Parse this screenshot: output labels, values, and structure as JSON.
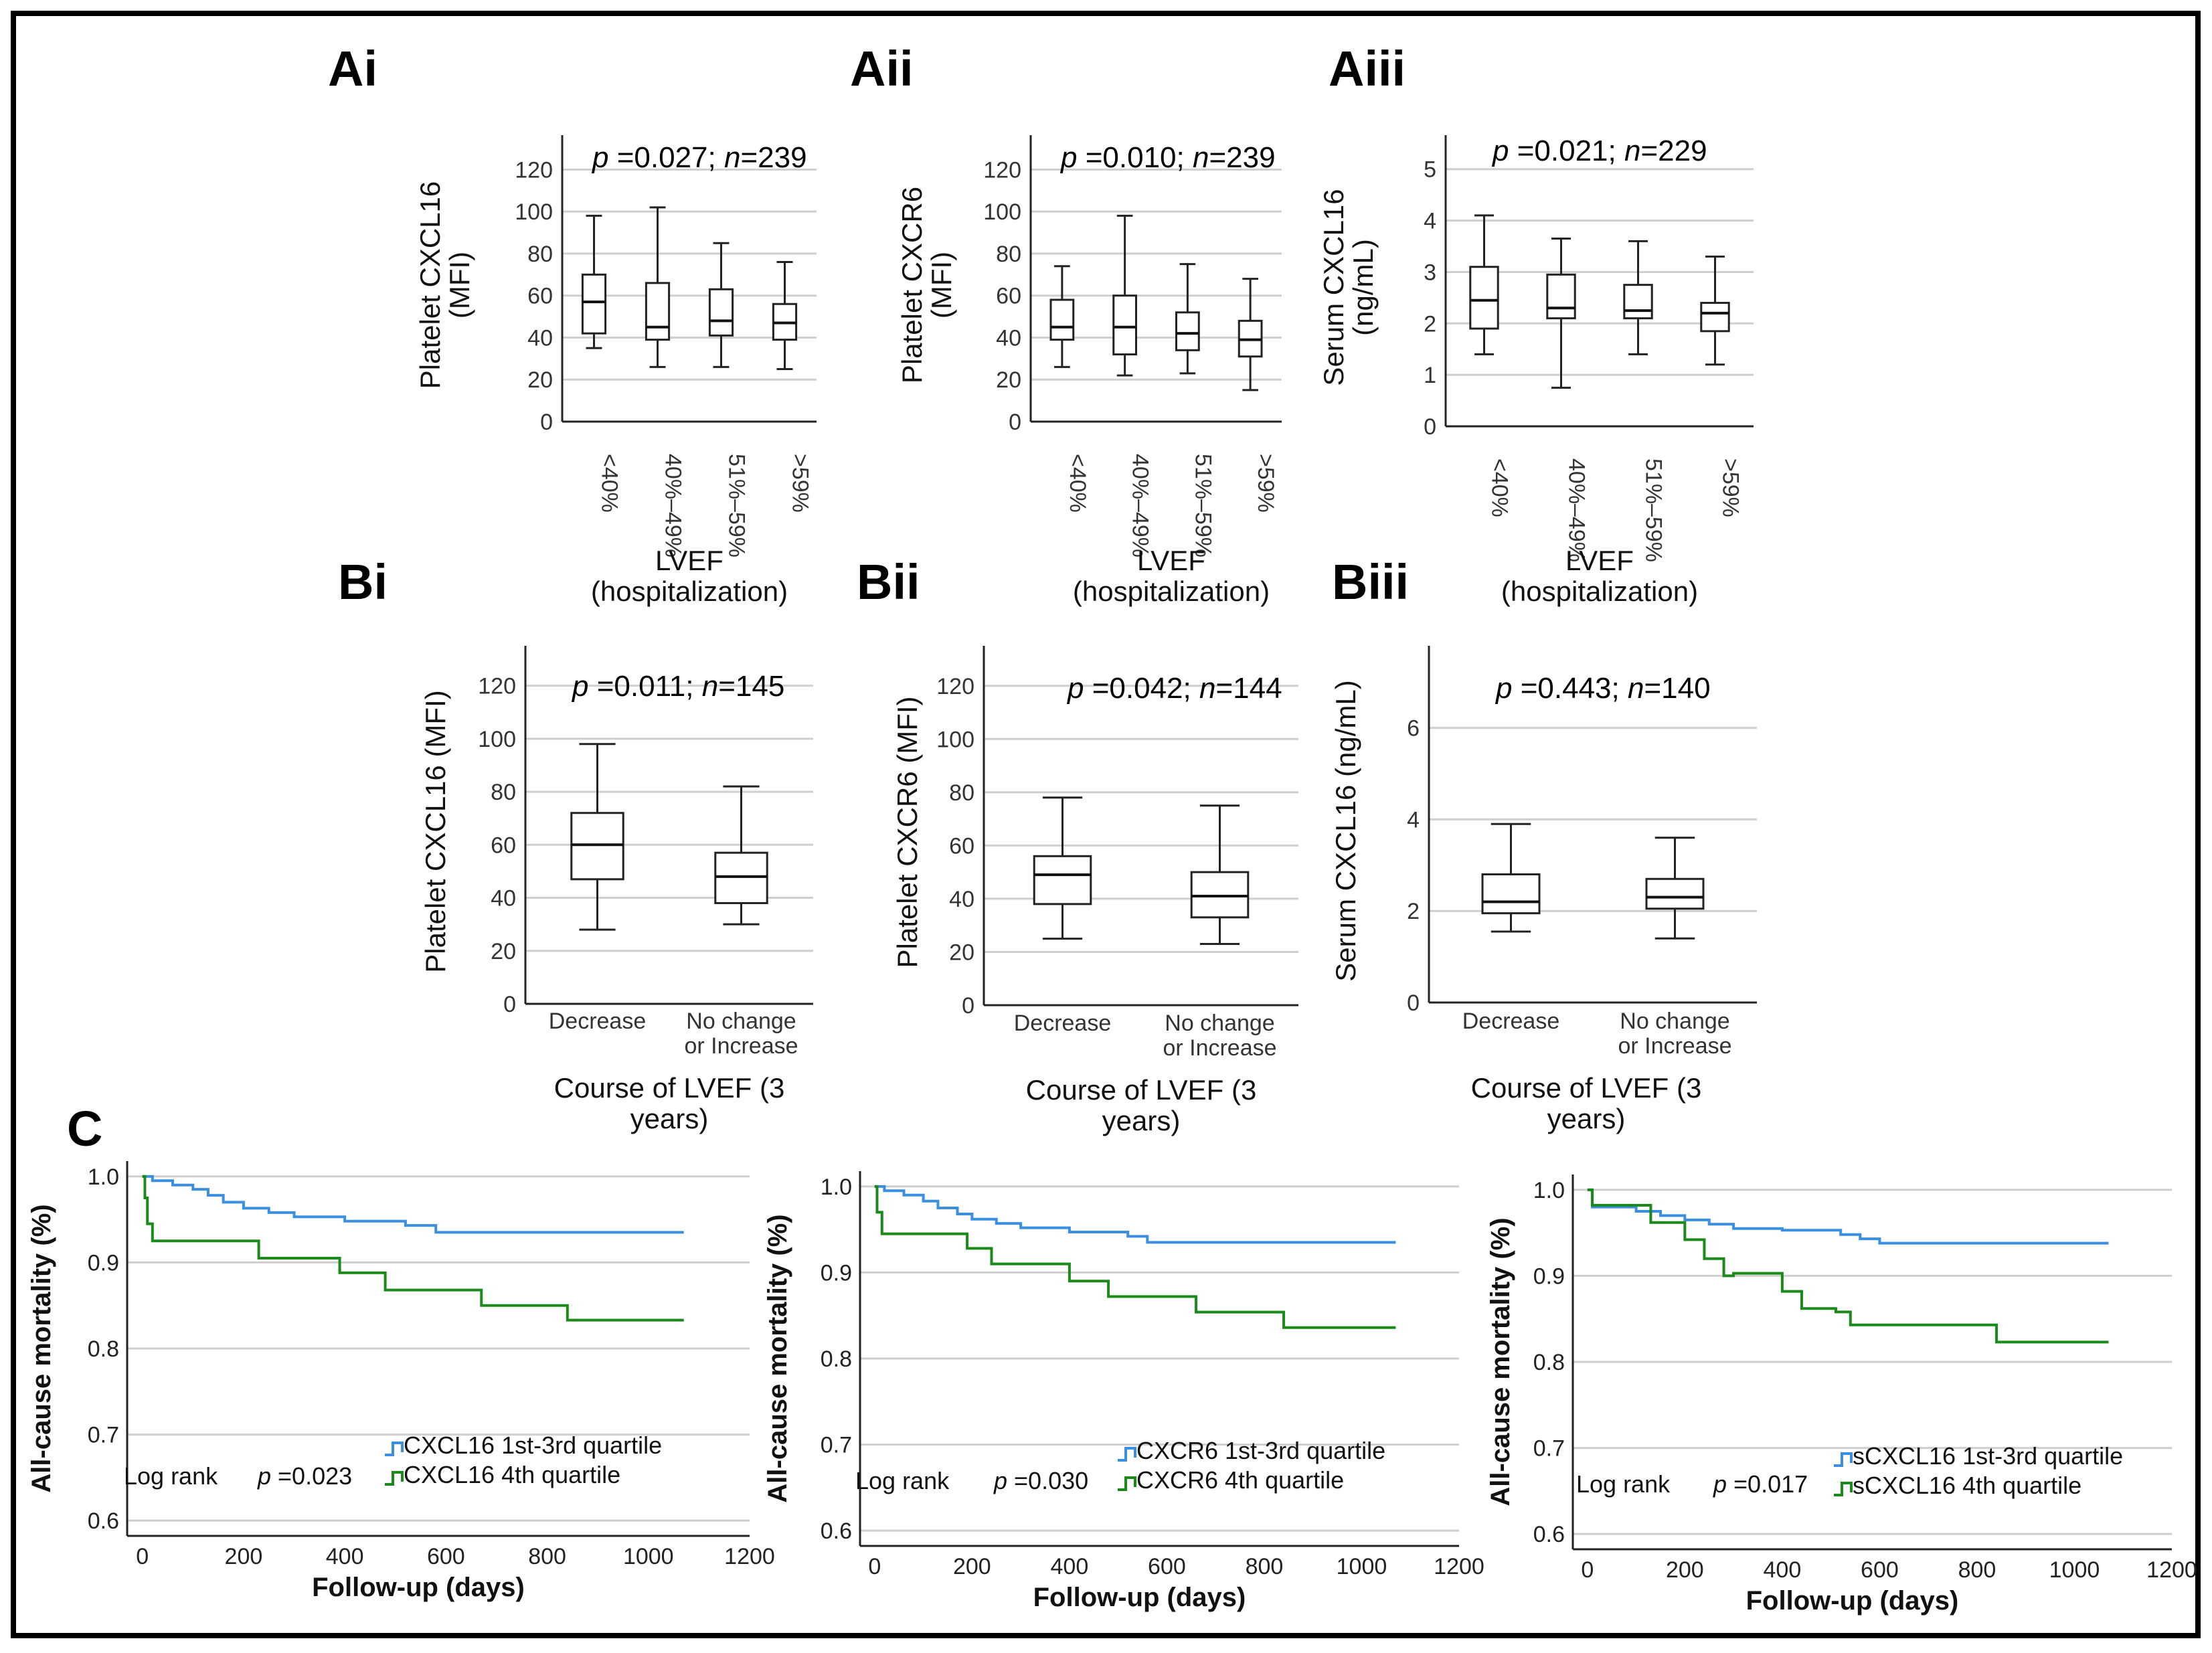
{
  "colors": {
    "blue": "#3a8fe0",
    "green": "#1a8a1a",
    "frame": "#000000",
    "grid": "#cfcfcf"
  },
  "panel_labels": {
    "Ai": "Ai",
    "Aii": "Aii",
    "Aiii": "Aiii",
    "Bi": "Bi",
    "Bii": "Bii",
    "Biii": "Biii",
    "C": "C"
  },
  "chart_data": [
    {
      "id": "Ai",
      "type": "box",
      "ylabel": "Platelet CXCL16\n(MFI)",
      "xlabel": "LVEF\n(hospitalization)",
      "stat": {
        "p_label": "p",
        "p_value": "=0.027;",
        "n_label": "n",
        "n_value": "=239"
      },
      "ylim": [
        0,
        130
      ],
      "yticks": [
        0,
        20,
        40,
        60,
        80,
        100,
        120
      ],
      "categories": [
        "<40%",
        "40%–49%",
        "51%–59%",
        ">59%"
      ],
      "boxes": [
        {
          "min": 35,
          "q1": 42,
          "median": 57,
          "q3": 70,
          "max": 98
        },
        {
          "min": 26,
          "q1": 39,
          "median": 45,
          "q3": 66,
          "max": 102
        },
        {
          "min": 26,
          "q1": 41,
          "median": 48,
          "q3": 63,
          "max": 85
        },
        {
          "min": 25,
          "q1": 39,
          "median": 47,
          "q3": 56,
          "max": 76
        }
      ]
    },
    {
      "id": "Aii",
      "type": "box",
      "ylabel": "Platelet CXCR6\n(MFI)",
      "xlabel": "LVEF\n(hospitalization)",
      "stat": {
        "p_label": "p",
        "p_value": "=0.010;",
        "n_label": "n",
        "n_value": "=239"
      },
      "ylim": [
        0,
        130
      ],
      "yticks": [
        0,
        20,
        40,
        60,
        80,
        100,
        120
      ],
      "categories": [
        "<40%",
        "40%–49%",
        "51%–59%",
        ">59%"
      ],
      "boxes": [
        {
          "min": 26,
          "q1": 39,
          "median": 45,
          "q3": 58,
          "max": 74
        },
        {
          "min": 22,
          "q1": 32,
          "median": 45,
          "q3": 60,
          "max": 98
        },
        {
          "min": 23,
          "q1": 34,
          "median": 42,
          "q3": 52,
          "max": 75
        },
        {
          "min": 15,
          "q1": 31,
          "median": 39,
          "q3": 48,
          "max": 68
        }
      ]
    },
    {
      "id": "Aiii",
      "type": "box",
      "ylabel": "Serum CXCL16\n(ng/mL)",
      "xlabel": "LVEF\n(hospitalization)",
      "stat": {
        "p_label": "p",
        "p_value": "=0.021;",
        "n_label": "n",
        "n_value": "=229"
      },
      "ylim": [
        0,
        5.4
      ],
      "yticks": [
        0,
        1,
        2,
        3,
        4,
        5
      ],
      "categories": [
        "<40%",
        "40%–49%",
        "51%–59%",
        ">59%"
      ],
      "boxes": [
        {
          "min": 1.4,
          "q1": 1.9,
          "median": 2.45,
          "q3": 3.1,
          "max": 4.1
        },
        {
          "min": 0.75,
          "q1": 2.1,
          "median": 2.3,
          "q3": 2.95,
          "max": 3.65
        },
        {
          "min": 1.4,
          "q1": 2.1,
          "median": 2.25,
          "q3": 2.75,
          "max": 3.6
        },
        {
          "min": 1.2,
          "q1": 1.85,
          "median": 2.2,
          "q3": 2.4,
          "max": 3.3
        }
      ]
    },
    {
      "id": "Bi",
      "type": "box",
      "ylabel": "Platelet CXCL16 (MFI)",
      "xlabel": "Course of LVEF (3\nyears)",
      "stat": {
        "p_label": "p",
        "p_value": "=0.011;",
        "n_label": "n",
        "n_value": "=145"
      },
      "ylim": [
        0,
        130
      ],
      "yticks": [
        0,
        20,
        40,
        60,
        80,
        100,
        120
      ],
      "categories": [
        "Decrease",
        "No change\nor Increase"
      ],
      "boxes": [
        {
          "min": 28,
          "q1": 47,
          "median": 60,
          "q3": 72,
          "max": 98
        },
        {
          "min": 30,
          "q1": 38,
          "median": 48,
          "q3": 57,
          "max": 82
        }
      ]
    },
    {
      "id": "Bii",
      "type": "box",
      "ylabel": "Platelet CXCR6 (MFI)",
      "xlabel": "Course of LVEF (3\nyears)",
      "stat": {
        "p_label": "p",
        "p_value": "=0.042;",
        "n_label": "n",
        "n_value": "=144"
      },
      "ylim": [
        0,
        130
      ],
      "yticks": [
        0,
        20,
        40,
        60,
        80,
        100,
        120
      ],
      "categories": [
        "Decrease",
        "No change\nor Increase"
      ],
      "boxes": [
        {
          "min": 25,
          "q1": 38,
          "median": 49,
          "q3": 56,
          "max": 78
        },
        {
          "min": 23,
          "q1": 33,
          "median": 41,
          "q3": 50,
          "max": 75
        }
      ]
    },
    {
      "id": "Biii",
      "type": "box",
      "ylabel": "Serum CXCL16 (ng/mL)",
      "xlabel": "Course of LVEF (3\nyears)",
      "stat": {
        "p_label": "p",
        "p_value": "=0.443;",
        "n_label": "n",
        "n_value": "=140"
      },
      "ylim": [
        0,
        7.5
      ],
      "yticks": [
        0,
        2,
        4,
        6
      ],
      "categories": [
        "Decrease",
        "No change\nor Increase"
      ],
      "boxes": [
        {
          "min": 1.55,
          "q1": 1.95,
          "median": 2.2,
          "q3": 2.8,
          "max": 3.9
        },
        {
          "min": 1.4,
          "q1": 2.05,
          "median": 2.3,
          "q3": 2.7,
          "max": 3.6
        }
      ]
    },
    {
      "id": "C1",
      "type": "line",
      "subtype": "kaplan-meier",
      "ylabel": "All-cause mortality (%)",
      "xlabel": "Follow-up (days)",
      "xlim": [
        -30,
        1200
      ],
      "ylim": [
        0.59,
        1.01
      ],
      "xticks": [
        0,
        200,
        400,
        600,
        800,
        1000,
        1200
      ],
      "yticks": [
        0.6,
        0.7,
        0.8,
        0.9,
        1.0
      ],
      "ytick_labels": [
        "0.6",
        "0.7",
        "0.8",
        "0.9",
        "1.0"
      ],
      "log_rank_label": "Log rank",
      "p_label": "p",
      "p_value": "=0.023",
      "series": [
        {
          "name": "CXCL16 1st-3rd quartile",
          "color": "#3a8fe0",
          "x": [
            0,
            20,
            60,
            100,
            130,
            160,
            200,
            250,
            300,
            400,
            520,
            580,
            1070
          ],
          "y": [
            1.0,
            0.995,
            0.99,
            0.985,
            0.978,
            0.97,
            0.963,
            0.958,
            0.953,
            0.948,
            0.943,
            0.935,
            0.935
          ]
        },
        {
          "name": "CXCL16 4th quartile",
          "color": "#1a8a1a",
          "x": [
            0,
            5,
            10,
            20,
            230,
            390,
            480,
            670,
            840,
            1070
          ],
          "y": [
            1.0,
            0.975,
            0.945,
            0.925,
            0.905,
            0.888,
            0.868,
            0.85,
            0.833,
            0.833
          ]
        }
      ]
    },
    {
      "id": "C2",
      "type": "line",
      "subtype": "kaplan-meier",
      "ylabel": "All-cause mortality (%)",
      "xlabel": "Follow-up (days)",
      "xlim": [
        -30,
        1200
      ],
      "ylim": [
        0.59,
        1.01
      ],
      "xticks": [
        0,
        200,
        400,
        600,
        800,
        1000,
        1200
      ],
      "yticks": [
        0.6,
        0.7,
        0.8,
        0.9,
        1.0
      ],
      "ytick_labels": [
        "0.6",
        "0.7",
        "0.8",
        "0.9",
        "1.0"
      ],
      "log_rank_label": "Log rank",
      "p_label": "p",
      "p_value": "=0.030",
      "series": [
        {
          "name": "CXCR6 1st-3rd quartile",
          "color": "#3a8fe0",
          "x": [
            0,
            20,
            60,
            100,
            130,
            170,
            200,
            250,
            300,
            400,
            520,
            560,
            1070
          ],
          "y": [
            1.0,
            0.995,
            0.99,
            0.983,
            0.975,
            0.968,
            0.962,
            0.957,
            0.952,
            0.947,
            0.942,
            0.935,
            0.935
          ]
        },
        {
          "name": "CXCR6 4th quartile",
          "color": "#1a8a1a",
          "x": [
            0,
            5,
            15,
            190,
            240,
            400,
            480,
            660,
            840,
            1070
          ],
          "y": [
            1.0,
            0.97,
            0.945,
            0.928,
            0.91,
            0.89,
            0.872,
            0.854,
            0.836,
            0.836
          ]
        }
      ]
    },
    {
      "id": "C3",
      "type": "line",
      "subtype": "kaplan-meier",
      "ylabel": "All-cause mortality (%)",
      "xlabel": "Follow-up (days)",
      "xlim": [
        -30,
        1200
      ],
      "ylim": [
        0.59,
        1.01
      ],
      "xticks": [
        0,
        200,
        400,
        600,
        800,
        1000,
        1200
      ],
      "yticks": [
        0.6,
        0.7,
        0.8,
        0.9,
        1.0
      ],
      "ytick_labels": [
        "0.6",
        "0.7",
        "0.8",
        "0.9",
        "1.0"
      ],
      "log_rank_label": "Log rank",
      "p_label": "p",
      "p_value": "=0.017",
      "series": [
        {
          "name": "sCXCL16 1st-3rd quartile",
          "color": "#3a8fe0",
          "x": [
            0,
            10,
            100,
            150,
            200,
            250,
            300,
            400,
            520,
            560,
            600,
            1070
          ],
          "y": [
            1.0,
            0.98,
            0.975,
            0.97,
            0.965,
            0.96,
            0.955,
            0.953,
            0.948,
            0.943,
            0.938,
            0.938
          ]
        },
        {
          "name": "sCXCL16 4th quartile",
          "color": "#1a8a1a",
          "x": [
            0,
            10,
            130,
            200,
            240,
            280,
            300,
            400,
            440,
            510,
            540,
            840,
            1070
          ],
          "y": [
            1.0,
            0.982,
            0.962,
            0.942,
            0.92,
            0.9,
            0.903,
            0.882,
            0.862,
            0.858,
            0.843,
            0.823,
            0.823
          ]
        }
      ]
    }
  ]
}
